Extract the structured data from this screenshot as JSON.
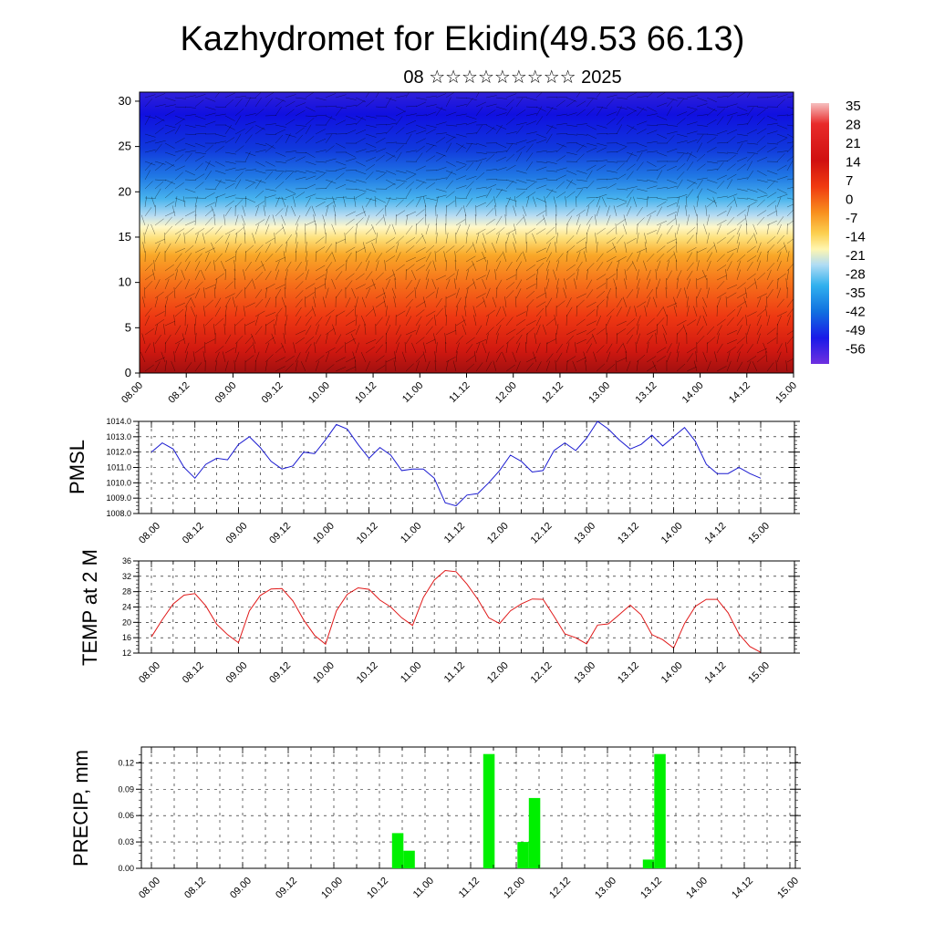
{
  "header": {
    "title": "Kazhydromet for Ekidin(49.53 66.13)",
    "subtitle": "08 ☆☆☆☆☆☆☆☆☆ 2025"
  },
  "time_labels": [
    "08.00",
    "08.12",
    "09.00",
    "09.12",
    "10.00",
    "10.12",
    "11.00",
    "11.12",
    "12.00",
    "12.12",
    "13.00",
    "13.12",
    "14.00",
    "14.12",
    "15.00"
  ],
  "chart_data": [
    {
      "type": "heatmap",
      "ylim": [
        0,
        31
      ],
      "yticks": [
        "0",
        "5",
        "10",
        "15",
        "20",
        "25",
        "30"
      ],
      "colorbar": {
        "labels": [
          "35",
          "28",
          "21",
          "14",
          "7",
          "0",
          "-7",
          "-14",
          "-21",
          "-28",
          "-35",
          "-42",
          "-49",
          "-56"
        ],
        "colors": [
          "#f4a8a8",
          "#e63a2a",
          "#cc1010",
          "#ee3010",
          "#f46010",
          "#f89020",
          "#fac040",
          "#fff0a0",
          "#c8e0f0",
          "#50b8ee",
          "#2090e8",
          "#1040e0",
          "#1818e8",
          "#6030e0"
        ]
      },
      "temperature_by_height": [
        {
          "y": 0,
          "t": 30
        },
        {
          "y": 5,
          "t": 22
        },
        {
          "y": 10,
          "t": 10
        },
        {
          "y": 15,
          "t": -10
        },
        {
          "y": 17,
          "t": -20
        },
        {
          "y": 20,
          "t": -35
        },
        {
          "y": 25,
          "t": -49
        },
        {
          "y": 30,
          "t": -55
        }
      ]
    },
    {
      "type": "line",
      "ylabel": "PMSL",
      "ylim": [
        1008,
        1014
      ],
      "yticks": [
        "1008.0",
        "1009.0",
        "1010.0",
        "1011.0",
        "1012.0",
        "1013.0",
        "1014.0"
      ],
      "color": "#1a1ad0",
      "series": [
        {
          "values": [
            1012.0,
            1012.6,
            1012.2,
            1011.0,
            1010.3,
            1011.2,
            1011.6,
            1011.5,
            1012.5,
            1013.0,
            1012.3,
            1011.4,
            1010.9,
            1011.1,
            1012.0,
            1011.9,
            1012.8,
            1013.8,
            1013.5,
            1012.5,
            1011.6,
            1012.3,
            1011.8,
            1010.8,
            1010.9,
            1010.9,
            1010.3,
            1008.7,
            1008.5,
            1009.2,
            1009.3,
            1010.0,
            1010.8,
            1011.8,
            1011.4,
            1010.7,
            1010.8,
            1012.1,
            1012.6,
            1012.1,
            1012.9,
            1014.0,
            1013.5,
            1012.8,
            1012.2,
            1012.5,
            1013.1,
            1012.4,
            1013.0,
            1013.6,
            1012.7,
            1011.2,
            1010.6,
            1010.6,
            1011.0,
            1010.6,
            1010.3
          ]
        }
      ]
    },
    {
      "type": "line",
      "ylabel": "TEMP at 2 M",
      "ylim": [
        12,
        36
      ],
      "yticks": [
        "12",
        "16",
        "20",
        "24",
        "28",
        "32",
        "36"
      ],
      "color": "#e01818",
      "series": [
        {
          "values": [
            16.2,
            20.7,
            24.8,
            27.1,
            27.5,
            24.3,
            19.5,
            16.8,
            14.7,
            23.0,
            27.0,
            28.7,
            28.8,
            25.6,
            20.6,
            16.6,
            14.3,
            23.0,
            27.3,
            29.0,
            28.6,
            25.8,
            24.0,
            21.2,
            19.2,
            26.5,
            31.0,
            33.5,
            33.2,
            30.0,
            26.0,
            21.2,
            19.7,
            23.0,
            24.8,
            26.1,
            26.0,
            21.6,
            17.0,
            16.0,
            14.4,
            19.3,
            19.6,
            22.0,
            24.5,
            22.0,
            16.8,
            15.5,
            13.3,
            19.7,
            24.2,
            26.0,
            26.0,
            22.5,
            17.0,
            13.7,
            12.2
          ]
        }
      ]
    },
    {
      "type": "bar",
      "ylabel": "PRECIP, mm",
      "ylim": [
        0,
        0.138
      ],
      "yticks": [
        "0.00",
        "0.03",
        "0.06",
        "0.09",
        "0.12"
      ],
      "color": "#00f000",
      "bars": [
        {
          "time_step": 20,
          "value": 0.04
        },
        {
          "time_step": 21,
          "value": 0.02
        },
        {
          "time_step": 28,
          "value": 0.13
        },
        {
          "time_step": 31,
          "value": 0.03
        },
        {
          "time_step": 32,
          "value": 0.08
        },
        {
          "time_step": 42,
          "value": 0.01
        },
        {
          "time_step": 43,
          "value": 0.13
        }
      ]
    }
  ]
}
